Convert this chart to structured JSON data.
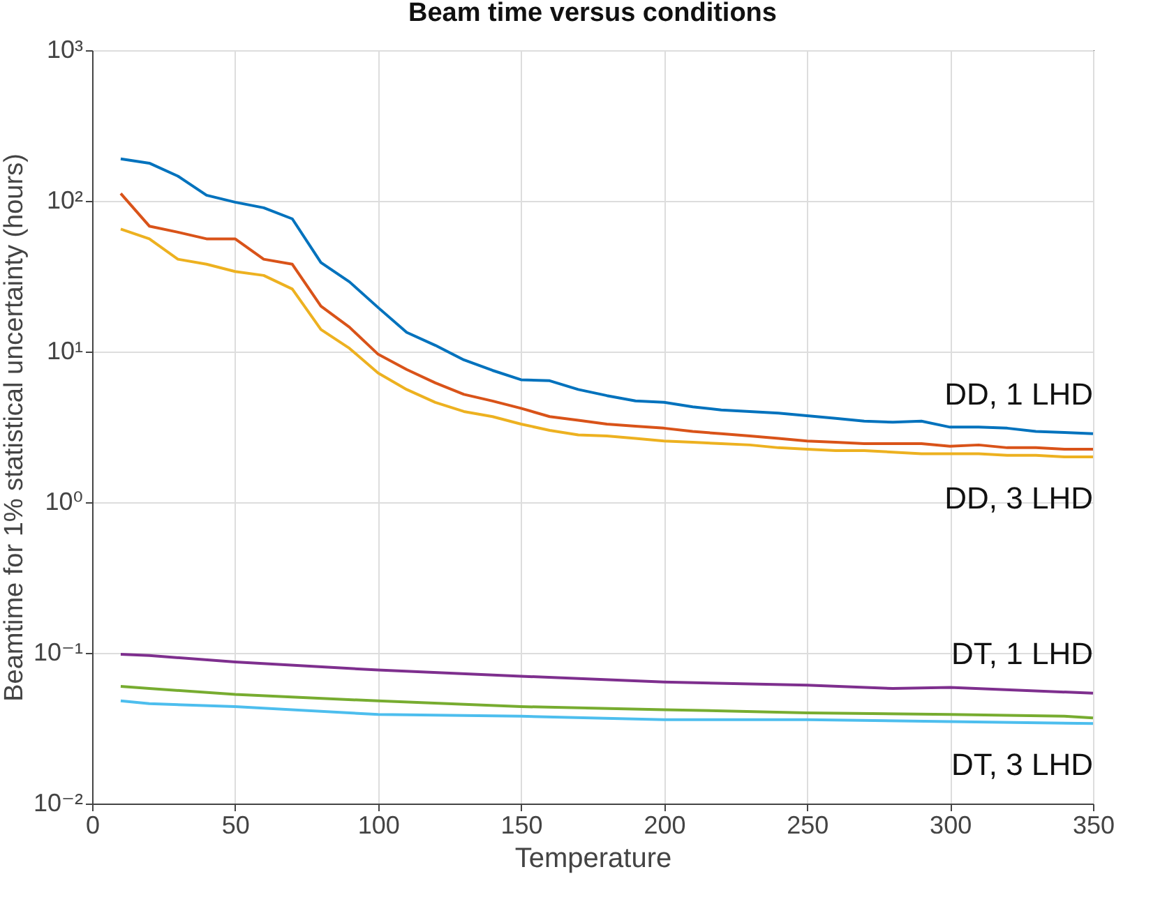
{
  "chart_data": {
    "type": "line",
    "title": "Beam time versus conditions",
    "xlabel": "Temperature",
    "ylabel": "Beamtime for 1% statistical uncertainty (hours)",
    "log": "y",
    "grid": true,
    "legend": false,
    "line_style": "solid",
    "marker": "none",
    "xlim": [
      0,
      350
    ],
    "xticks": [
      0,
      50,
      100,
      150,
      200,
      250,
      300,
      350
    ],
    "ylim": [
      0.01,
      1000
    ],
    "yticks": [
      {
        "value": 0.01,
        "label": "10⁻²"
      },
      {
        "value": 0.1,
        "label": "10⁻¹"
      },
      {
        "value": 1,
        "label": "10⁰"
      },
      {
        "value": 10,
        "label": "10¹"
      },
      {
        "value": 100,
        "label": "10²"
      },
      {
        "value": 1000,
        "label": "10³"
      }
    ],
    "x": [
      10,
      20,
      30,
      40,
      50,
      60,
      70,
      80,
      90,
      100,
      110,
      120,
      130,
      140,
      150,
      160,
      170,
      180,
      190,
      200,
      210,
      220,
      230,
      240,
      250,
      260,
      270,
      280,
      290,
      300,
      310,
      320,
      330,
      340,
      350
    ],
    "series": [
      {
        "name": "DD, 1 LHD",
        "color": "#0072bd",
        "values": [
          190,
          178,
          146,
          109,
          98,
          90,
          76,
          39,
          29,
          19.6,
          13.4,
          11,
          8.8,
          7.5,
          6.5,
          6.4,
          5.6,
          5.1,
          4.7,
          4.6,
          4.3,
          4.1,
          4.0,
          3.9,
          3.75,
          3.6,
          3.45,
          3.4,
          3.45,
          3.15,
          3.15,
          3.1,
          2.95,
          2.9,
          2.85
        ]
      },
      {
        "color": "#d95319",
        "values": [
          112,
          68,
          62,
          56,
          56,
          41,
          38,
          20,
          14.5,
          9.6,
          7.6,
          6.2,
          5.2,
          4.7,
          4.2,
          3.7,
          3.5,
          3.3,
          3.2,
          3.1,
          2.95,
          2.85,
          2.75,
          2.65,
          2.55,
          2.5,
          2.45,
          2.45,
          2.45,
          2.35,
          2.4,
          2.3,
          2.3,
          2.25,
          2.25
        ]
      },
      {
        "name": "DD, 3 LHD",
        "color": "#edb120",
        "values": [
          65,
          56,
          41,
          38,
          34,
          32,
          26,
          14,
          10.5,
          7.2,
          5.6,
          4.6,
          4.0,
          3.7,
          3.3,
          3.0,
          2.8,
          2.75,
          2.65,
          2.55,
          2.5,
          2.45,
          2.4,
          2.3,
          2.25,
          2.2,
          2.2,
          2.15,
          2.1,
          2.1,
          2.1,
          2.05,
          2.05,
          2.0,
          2.0
        ]
      },
      {
        "name": "DT, 1 LHD",
        "color": "#7e2f8e",
        "x": [
          10,
          20,
          50,
          100,
          150,
          200,
          250,
          280,
          300,
          350
        ],
        "values": [
          0.098,
          0.096,
          0.087,
          0.077,
          0.07,
          0.064,
          0.061,
          0.058,
          0.059,
          0.054
        ]
      },
      {
        "color": "#77ac30",
        "x": [
          10,
          20,
          50,
          100,
          150,
          200,
          250,
          300,
          340,
          350
        ],
        "values": [
          0.06,
          0.058,
          0.053,
          0.048,
          0.044,
          0.042,
          0.04,
          0.039,
          0.038,
          0.037
        ]
      },
      {
        "name": "DT, 3 LHD",
        "color": "#4dbeee",
        "x": [
          10,
          20,
          50,
          100,
          150,
          200,
          250,
          300,
          350
        ],
        "values": [
          0.048,
          0.046,
          0.044,
          0.039,
          0.038,
          0.036,
          0.036,
          0.035,
          0.034
        ]
      }
    ]
  }
}
